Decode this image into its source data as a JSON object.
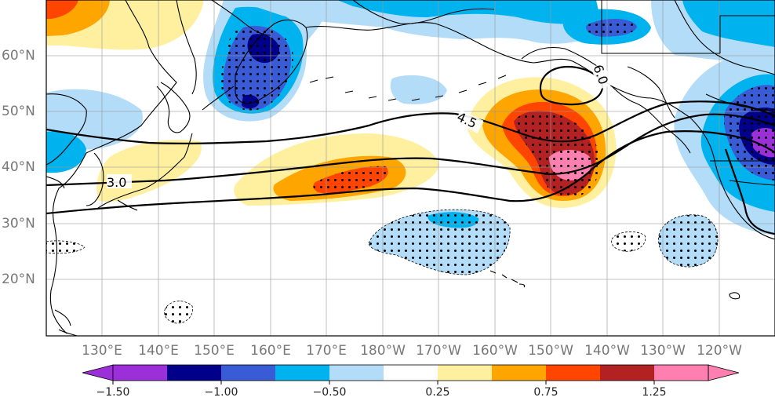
{
  "map": {
    "longitude_labels": [
      "130°E",
      "140°E",
      "150°E",
      "160°E",
      "170°E",
      "180°W",
      "170°W",
      "160°W",
      "150°W",
      "140°W",
      "130°W",
      "120°W"
    ],
    "latitude_labels": [
      "60°N",
      "50°N",
      "40°N",
      "30°N",
      "20°N"
    ],
    "contour_labels": [
      "3.0",
      "4.5",
      "6.0"
    ],
    "colorbar": {
      "colors": [
        "#9b30d9",
        "#00008b",
        "#3a5bd6",
        "#00b2ee",
        "#b3dcf8",
        "#ffffff",
        "#fff0a0",
        "#ffa500",
        "#ff4500",
        "#b22222",
        "#ff80b0"
      ],
      "tick_labels": [
        "−1.50",
        "−1.00",
        "−0.50",
        "0.25",
        "0.75",
        "1.25"
      ]
    }
  }
}
